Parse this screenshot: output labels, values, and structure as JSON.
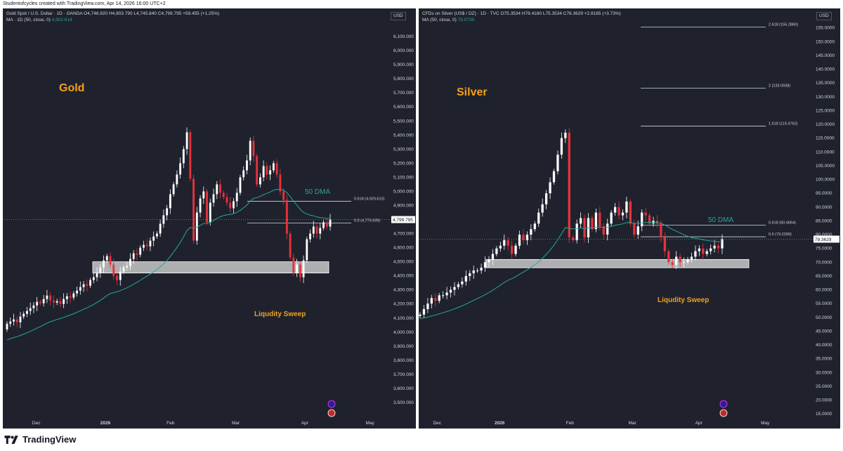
{
  "header": {
    "attribution": "Studentofcycles created with TradingView.com, Apr 14, 2026 16:00 UTC+2"
  },
  "footer": {
    "brand": "TradingView"
  },
  "colors": {
    "background": "#1f222d",
    "up": "#ffffff",
    "down": "#e8323c",
    "ma": "#26a69a",
    "annotation": "#f5a01a",
    "zone": "#c8c8c8",
    "grid_text": "#d1d4dc"
  },
  "chart_data": [
    {
      "type": "candlestick",
      "symbol_line": "Gold Spot / U.S. Dollar · 1D · OANDA  O4,746.920  H4,803.790  L4,745.840  C4,799.795  +59.455 (+1.25%)",
      "ma_label": "MA · 1D (50, close, 0)",
      "ma_value": "4,902.614",
      "currency": "USD",
      "title": "Gold",
      "ylim": [
        3380,
        6260
      ],
      "y_ticks": [
        "6,100.000",
        "6,000.000",
        "5,900.000",
        "5,800.000",
        "5,700.000",
        "5,600.000",
        "5,500.000",
        "5,400.000",
        "5,300.000",
        "5,200.000",
        "5,100.000",
        "5,000.000",
        "4,900.000",
        "4,800.000",
        "4,700.000",
        "4,600.000",
        "4,500.000",
        "4,400.000",
        "4,300.000",
        "4,200.000",
        "4,100.000",
        "4,000.000",
        "3,900.000",
        "3,800.000",
        "3,700.000",
        "3,600.000",
        "3,500.000"
      ],
      "x_labels": [
        "Dec",
        "2026",
        "Feb",
        "Mar",
        "Apr",
        "May"
      ],
      "last_price": "4,799.795",
      "fib_levels": [
        {
          "label": "0.618 (4,929.613)",
          "value": 4929.613
        },
        {
          "label": "0.5 (4,775.695)",
          "value": 4775.695
        }
      ],
      "zone": {
        "from": 4420,
        "to": 4500
      },
      "annotations": {
        "ma_label": "50 DMA",
        "sweep_label": "Liqudity Sweep"
      },
      "closes": [
        4060,
        4075,
        4090,
        4070,
        4110,
        4130,
        4150,
        4170,
        4190,
        4215,
        4205,
        4235,
        4260,
        4225,
        4210,
        4220,
        4200,
        4235,
        4255,
        4245,
        4275,
        4295,
        4320,
        4340,
        4330,
        4370,
        4390,
        4420,
        4460,
        4510,
        4540,
        4480,
        4400,
        4370,
        4430,
        4460,
        4470,
        4520,
        4560,
        4550,
        4600,
        4620,
        4610,
        4650,
        4680,
        4700,
        4770,
        4830,
        4880,
        4980,
        5050,
        5120,
        5200,
        5300,
        5420,
        5090,
        4650,
        4850,
        4950,
        5000,
        4780,
        4920,
        4980,
        5050,
        4990,
        4960,
        4920,
        4880,
        4930,
        4990,
        5100,
        5150,
        5220,
        5360,
        5250,
        5050,
        5100,
        5180,
        5120,
        5150,
        5200,
        5120,
        5000,
        4940,
        4700,
        4530,
        4420,
        4480,
        4390,
        4510,
        4660,
        4700,
        4750,
        4700,
        4740,
        4780,
        4750,
        4800
      ]
    },
    {
      "type": "candlestick",
      "symbol_line": "CFDs on Silver (US$ / OZ) · 1D · TVC  O75.3534  H78.4180  L75.3534  C78.3629  +2.8165 (+3.73%)",
      "ma_label": "MA (50, close, 0)",
      "ma_value": "79.0739",
      "currency": "USD",
      "title": "Silver",
      "ylim": [
        13,
        160
      ],
      "y_ticks": [
        "155.0000",
        "150.0000",
        "145.0000",
        "140.0000",
        "135.0000",
        "130.0000",
        "125.0000",
        "120.0000",
        "115.0000",
        "110.0000",
        "105.0000",
        "100.0000",
        "95.0000",
        "90.0000",
        "85.0000",
        "80.0000",
        "75.0000",
        "70.0000",
        "65.0000",
        "60.0000",
        "55.0000",
        "50.0000",
        "45.0000",
        "40.0000",
        "35.0000",
        "30.0000",
        "25.0000",
        "20.0000",
        "15.0000"
      ],
      "x_labels": [
        "Dec",
        "2026",
        "Feb",
        "Mar",
        "Apr",
        "May"
      ],
      "last_price": "78.3629",
      "fib_levels": [
        {
          "label": "2.618 (155.2860)",
          "value": 155.286
        },
        {
          "label": "2 (133.0938)",
          "value": 133.0938
        },
        {
          "label": "1.618 (119.3762)",
          "value": 119.3762
        },
        {
          "label": "0.618 (83.4664)",
          "value": 83.4664
        },
        {
          "label": "0.5 (79.2290)",
          "value": 79.229
        }
      ],
      "zone": {
        "from": 68,
        "to": 71
      },
      "annotations": {
        "ma_label": "50 DMA",
        "sweep_label": "Liqudity Sweep"
      },
      "closes": [
        51,
        53,
        55,
        57,
        56,
        58,
        58,
        59,
        60,
        61,
        62,
        63,
        65,
        66,
        67,
        67,
        68,
        70,
        71,
        73,
        75,
        76,
        78,
        76,
        73,
        76,
        80,
        78,
        80,
        82,
        84,
        88,
        91,
        95,
        99,
        103,
        109,
        115,
        117,
        79,
        78,
        84,
        86,
        79,
        86,
        82,
        88,
        83,
        80,
        84,
        88,
        90,
        87,
        88,
        92,
        84,
        80,
        83,
        88,
        87,
        84,
        85,
        84,
        79,
        74,
        70,
        69,
        72,
        70,
        70,
        71,
        72,
        74,
        75,
        73,
        74,
        75,
        76,
        75,
        78.36
      ]
    }
  ]
}
